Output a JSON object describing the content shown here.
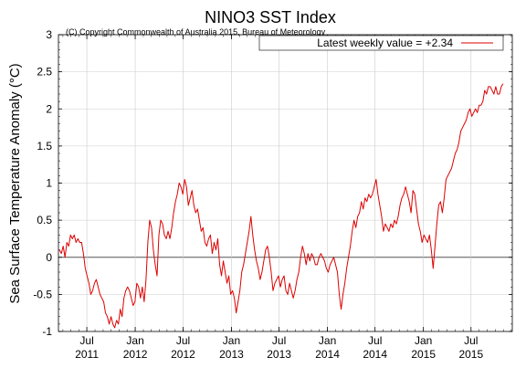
{
  "chart_data": {
    "type": "line",
    "title": "NINO3 SST Index",
    "subtitle": "(C) Copyright Commonwealth of Australia 2015, Bureau of Meteorology",
    "ylabel": "Sea Surface Temperature Anomaly (°C)",
    "xlabel": "",
    "ylim": [
      -1,
      3
    ],
    "yticks": [
      -1,
      -0.5,
      0,
      0.5,
      1,
      1.5,
      2,
      2.5,
      3
    ],
    "ytick_labels": [
      "-1",
      "-0.5",
      "0",
      "0.5",
      "1",
      "1.5",
      "2",
      "2.5",
      "3"
    ],
    "xlim": [
      "2011-03-15",
      "2015-12-05"
    ],
    "xticks": [
      {
        "date": "2011-07-01",
        "line1": "Jul",
        "line2": "2011"
      },
      {
        "date": "2012-01-01",
        "line1": "Jan",
        "line2": "2012"
      },
      {
        "date": "2012-07-01",
        "line1": "Jul",
        "line2": "2012"
      },
      {
        "date": "2013-01-01",
        "line1": "Jan",
        "line2": "2013"
      },
      {
        "date": "2013-07-01",
        "line1": "Jul",
        "line2": "2013"
      },
      {
        "date": "2014-01-01",
        "line1": "Jan",
        "line2": "2014"
      },
      {
        "date": "2014-07-01",
        "line1": "Jul",
        "line2": "2014"
      },
      {
        "date": "2015-01-01",
        "line1": "Jan",
        "line2": "2015"
      },
      {
        "date": "2015-07-01",
        "line1": "Jul",
        "line2": "2015"
      }
    ],
    "grid": true,
    "zero_line": true,
    "legend": {
      "placement": "top-right",
      "text": "Latest weekly value = +2.34"
    },
    "series": [
      {
        "color": "#dd0000",
        "points": [
          [
            "2011-03-19",
            0.1
          ],
          [
            "2011-03-26",
            0.05
          ],
          [
            "2011-04-02",
            0.15
          ],
          [
            "2011-04-09",
            0.0
          ],
          [
            "2011-04-16",
            0.2
          ],
          [
            "2011-04-23",
            0.15
          ],
          [
            "2011-04-30",
            0.3
          ],
          [
            "2011-05-07",
            0.25
          ],
          [
            "2011-05-14",
            0.3
          ],
          [
            "2011-05-21",
            0.2
          ],
          [
            "2011-05-28",
            0.25
          ],
          [
            "2011-06-04",
            0.2
          ],
          [
            "2011-06-11",
            0.2
          ],
          [
            "2011-06-18",
            0.05
          ],
          [
            "2011-06-25",
            -0.15
          ],
          [
            "2011-07-02",
            -0.25
          ],
          [
            "2011-07-09",
            -0.35
          ],
          [
            "2011-07-16",
            -0.5
          ],
          [
            "2011-07-23",
            -0.45
          ],
          [
            "2011-07-30",
            -0.35
          ],
          [
            "2011-08-06",
            -0.3
          ],
          [
            "2011-08-13",
            -0.4
          ],
          [
            "2011-08-20",
            -0.5
          ],
          [
            "2011-08-27",
            -0.55
          ],
          [
            "2011-09-03",
            -0.6
          ],
          [
            "2011-09-10",
            -0.75
          ],
          [
            "2011-09-17",
            -0.8
          ],
          [
            "2011-09-24",
            -0.9
          ],
          [
            "2011-10-01",
            -0.8
          ],
          [
            "2011-10-08",
            -0.9
          ],
          [
            "2011-10-15",
            -0.95
          ],
          [
            "2011-10-22",
            -0.85
          ],
          [
            "2011-10-29",
            -0.9
          ],
          [
            "2011-11-05",
            -0.7
          ],
          [
            "2011-11-12",
            -0.8
          ],
          [
            "2011-11-19",
            -0.55
          ],
          [
            "2011-11-26",
            -0.45
          ],
          [
            "2011-12-03",
            -0.4
          ],
          [
            "2011-12-10",
            -0.45
          ],
          [
            "2011-12-17",
            -0.55
          ],
          [
            "2011-12-24",
            -0.65
          ],
          [
            "2011-12-31",
            -0.6
          ],
          [
            "2012-01-07",
            -0.35
          ],
          [
            "2012-01-14",
            -0.4
          ],
          [
            "2012-01-21",
            -0.55
          ],
          [
            "2012-01-28",
            -0.4
          ],
          [
            "2012-02-04",
            -0.6
          ],
          [
            "2012-02-11",
            -0.3
          ],
          [
            "2012-02-18",
            0.2
          ],
          [
            "2012-02-25",
            0.5
          ],
          [
            "2012-03-03",
            0.4
          ],
          [
            "2012-03-10",
            0.1
          ],
          [
            "2012-03-17",
            -0.1
          ],
          [
            "2012-03-24",
            -0.25
          ],
          [
            "2012-03-31",
            0.3
          ],
          [
            "2012-04-07",
            0.5
          ],
          [
            "2012-04-14",
            0.45
          ],
          [
            "2012-04-21",
            0.3
          ],
          [
            "2012-04-28",
            0.25
          ],
          [
            "2012-05-05",
            0.35
          ],
          [
            "2012-05-12",
            0.25
          ],
          [
            "2012-05-19",
            0.4
          ],
          [
            "2012-05-26",
            0.6
          ],
          [
            "2012-06-02",
            0.75
          ],
          [
            "2012-06-09",
            0.85
          ],
          [
            "2012-06-16",
            1.0
          ],
          [
            "2012-06-23",
            0.95
          ],
          [
            "2012-06-30",
            0.85
          ],
          [
            "2012-07-07",
            1.05
          ],
          [
            "2012-07-14",
            0.95
          ],
          [
            "2012-07-21",
            0.7
          ],
          [
            "2012-07-28",
            0.8
          ],
          [
            "2012-08-04",
            0.9
          ],
          [
            "2012-08-11",
            0.7
          ],
          [
            "2012-08-18",
            0.6
          ],
          [
            "2012-08-25",
            0.65
          ],
          [
            "2012-09-01",
            0.5
          ],
          [
            "2012-09-08",
            0.35
          ],
          [
            "2012-09-15",
            0.4
          ],
          [
            "2012-09-22",
            0.2
          ],
          [
            "2012-09-29",
            0.15
          ],
          [
            "2012-10-06",
            0.25
          ],
          [
            "2012-10-13",
            0.3
          ],
          [
            "2012-10-20",
            0.05
          ],
          [
            "2012-10-27",
            0.2
          ],
          [
            "2012-11-03",
            0.1
          ],
          [
            "2012-11-10",
            0.25
          ],
          [
            "2012-11-17",
            -0.1
          ],
          [
            "2012-11-24",
            -0.25
          ],
          [
            "2012-12-01",
            -0.05
          ],
          [
            "2012-12-08",
            -0.2
          ],
          [
            "2012-12-15",
            -0.35
          ],
          [
            "2012-12-22",
            -0.25
          ],
          [
            "2012-12-29",
            -0.5
          ],
          [
            "2013-01-05",
            -0.45
          ],
          [
            "2013-01-12",
            -0.55
          ],
          [
            "2013-01-19",
            -0.75
          ],
          [
            "2013-01-26",
            -0.6
          ],
          [
            "2013-02-02",
            -0.45
          ],
          [
            "2013-02-09",
            -0.2
          ],
          [
            "2013-02-16",
            -0.1
          ],
          [
            "2013-02-23",
            0.05
          ],
          [
            "2013-03-02",
            0.2
          ],
          [
            "2013-03-09",
            0.35
          ],
          [
            "2013-03-16",
            0.55
          ],
          [
            "2013-03-23",
            0.3
          ],
          [
            "2013-03-30",
            0.1
          ],
          [
            "2013-04-06",
            -0.05
          ],
          [
            "2013-04-13",
            -0.15
          ],
          [
            "2013-04-20",
            -0.3
          ],
          [
            "2013-04-27",
            -0.2
          ],
          [
            "2013-05-04",
            -0.05
          ],
          [
            "2013-05-11",
            0.1
          ],
          [
            "2013-05-18",
            0.15
          ],
          [
            "2013-05-25",
            0.0
          ],
          [
            "2013-06-01",
            -0.2
          ],
          [
            "2013-06-08",
            -0.45
          ],
          [
            "2013-06-15",
            -0.35
          ],
          [
            "2013-06-22",
            -0.3
          ],
          [
            "2013-06-29",
            -0.25
          ],
          [
            "2013-07-06",
            -0.4
          ],
          [
            "2013-07-13",
            -0.3
          ],
          [
            "2013-07-20",
            -0.25
          ],
          [
            "2013-07-27",
            -0.45
          ],
          [
            "2013-08-03",
            -0.5
          ],
          [
            "2013-08-10",
            -0.35
          ],
          [
            "2013-08-17",
            -0.45
          ],
          [
            "2013-08-24",
            -0.55
          ],
          [
            "2013-08-31",
            -0.45
          ],
          [
            "2013-09-07",
            -0.3
          ],
          [
            "2013-09-14",
            -0.2
          ],
          [
            "2013-09-21",
            0.0
          ],
          [
            "2013-09-28",
            0.15
          ],
          [
            "2013-10-05",
            0.05
          ],
          [
            "2013-10-12",
            -0.1
          ],
          [
            "2013-10-19",
            0.05
          ],
          [
            "2013-10-26",
            -0.05
          ],
          [
            "2013-11-02",
            0.05
          ],
          [
            "2013-11-09",
            0.0
          ],
          [
            "2013-11-16",
            -0.1
          ],
          [
            "2013-11-23",
            -0.1
          ],
          [
            "2013-11-30",
            0.0
          ],
          [
            "2013-12-07",
            0.05
          ],
          [
            "2013-12-14",
            0.0
          ],
          [
            "2013-12-21",
            -0.05
          ],
          [
            "2013-12-28",
            -0.15
          ],
          [
            "2014-01-04",
            -0.2
          ],
          [
            "2014-01-11",
            -0.1
          ],
          [
            "2014-01-18",
            -0.05
          ],
          [
            "2014-01-25",
            0.0
          ],
          [
            "2014-02-01",
            -0.1
          ],
          [
            "2014-02-08",
            -0.2
          ],
          [
            "2014-02-15",
            -0.5
          ],
          [
            "2014-02-22",
            -0.7
          ],
          [
            "2014-03-01",
            -0.5
          ],
          [
            "2014-03-08",
            -0.35
          ],
          [
            "2014-03-15",
            -0.15
          ],
          [
            "2014-03-22",
            0.0
          ],
          [
            "2014-03-29",
            0.15
          ],
          [
            "2014-04-05",
            0.35
          ],
          [
            "2014-04-12",
            0.5
          ],
          [
            "2014-04-19",
            0.4
          ],
          [
            "2014-04-26",
            0.55
          ],
          [
            "2014-05-03",
            0.6
          ],
          [
            "2014-05-10",
            0.75
          ],
          [
            "2014-05-17",
            0.65
          ],
          [
            "2014-05-24",
            0.8
          ],
          [
            "2014-05-31",
            0.75
          ],
          [
            "2014-06-07",
            0.85
          ],
          [
            "2014-06-14",
            0.8
          ],
          [
            "2014-06-21",
            0.85
          ],
          [
            "2014-06-28",
            0.95
          ],
          [
            "2014-07-05",
            1.05
          ],
          [
            "2014-07-12",
            0.85
          ],
          [
            "2014-07-19",
            0.7
          ],
          [
            "2014-07-26",
            0.55
          ],
          [
            "2014-08-02",
            0.35
          ],
          [
            "2014-08-09",
            0.45
          ],
          [
            "2014-08-16",
            0.4
          ],
          [
            "2014-08-23",
            0.35
          ],
          [
            "2014-08-30",
            0.45
          ],
          [
            "2014-09-06",
            0.4
          ],
          [
            "2014-09-13",
            0.5
          ],
          [
            "2014-09-20",
            0.45
          ],
          [
            "2014-09-27",
            0.55
          ],
          [
            "2014-10-04",
            0.7
          ],
          [
            "2014-10-11",
            0.8
          ],
          [
            "2014-10-18",
            0.85
          ],
          [
            "2014-10-25",
            0.95
          ],
          [
            "2014-11-01",
            0.85
          ],
          [
            "2014-11-08",
            0.75
          ],
          [
            "2014-11-15",
            0.6
          ],
          [
            "2014-11-22",
            0.9
          ],
          [
            "2014-11-29",
            0.85
          ],
          [
            "2014-12-06",
            0.65
          ],
          [
            "2014-12-13",
            0.45
          ],
          [
            "2014-12-20",
            0.35
          ],
          [
            "2014-12-27",
            0.2
          ],
          [
            "2015-01-03",
            0.3
          ],
          [
            "2015-01-10",
            0.25
          ],
          [
            "2015-01-17",
            0.2
          ],
          [
            "2015-01-24",
            0.3
          ],
          [
            "2015-01-31",
            0.1
          ],
          [
            "2015-02-07",
            -0.15
          ],
          [
            "2015-02-14",
            0.15
          ],
          [
            "2015-02-21",
            0.45
          ],
          [
            "2015-02-28",
            0.7
          ],
          [
            "2015-03-07",
            0.75
          ],
          [
            "2015-03-14",
            0.6
          ],
          [
            "2015-03-21",
            0.8
          ],
          [
            "2015-03-28",
            1.05
          ],
          [
            "2015-04-04",
            1.1
          ],
          [
            "2015-04-11",
            1.15
          ],
          [
            "2015-04-18",
            1.2
          ],
          [
            "2015-04-25",
            1.3
          ],
          [
            "2015-05-02",
            1.4
          ],
          [
            "2015-05-09",
            1.45
          ],
          [
            "2015-05-16",
            1.55
          ],
          [
            "2015-05-23",
            1.7
          ],
          [
            "2015-05-30",
            1.75
          ],
          [
            "2015-06-06",
            1.8
          ],
          [
            "2015-06-13",
            1.85
          ],
          [
            "2015-06-20",
            1.95
          ],
          [
            "2015-06-27",
            2.0
          ],
          [
            "2015-07-04",
            1.9
          ],
          [
            "2015-07-11",
            1.95
          ],
          [
            "2015-07-18",
            2.0
          ],
          [
            "2015-07-25",
            1.95
          ],
          [
            "2015-08-01",
            2.05
          ],
          [
            "2015-08-08",
            2.05
          ],
          [
            "2015-08-15",
            2.1
          ],
          [
            "2015-08-22",
            2.25
          ],
          [
            "2015-08-29",
            2.2
          ],
          [
            "2015-09-05",
            2.3
          ],
          [
            "2015-09-12",
            2.3
          ],
          [
            "2015-09-19",
            2.25
          ],
          [
            "2015-09-26",
            2.2
          ],
          [
            "2015-10-03",
            2.3
          ],
          [
            "2015-10-10",
            2.2
          ],
          [
            "2015-10-17",
            2.2
          ],
          [
            "2015-10-24",
            2.3
          ],
          [
            "2015-10-31",
            2.34
          ]
        ]
      }
    ]
  }
}
